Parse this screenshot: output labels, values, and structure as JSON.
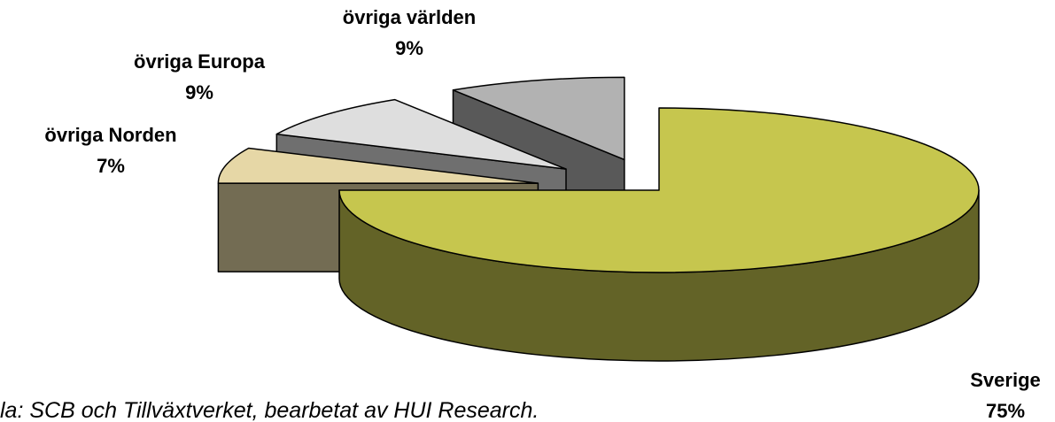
{
  "chart_data": {
    "type": "pie3d",
    "categories": [
      "Sverige",
      "övriga Norden",
      "övriga Europa",
      "övriga världen"
    ],
    "values": [
      75,
      7,
      9,
      9
    ],
    "value_labels": [
      "75%",
      "7%",
      "9%",
      "9%"
    ],
    "colors": [
      "#c6c64e",
      "#e6d7a6",
      "#dedede",
      "#b2b2b2"
    ],
    "source": "la: SCB och Tillväxtverket, bearbetat av HUI Research."
  }
}
